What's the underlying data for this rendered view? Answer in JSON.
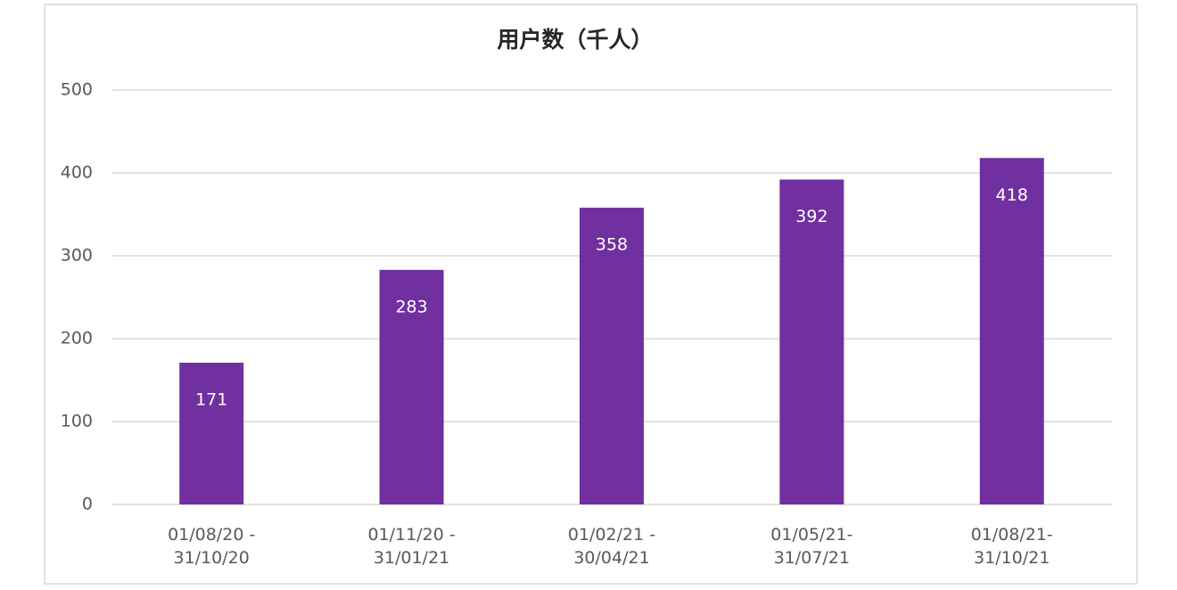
{
  "chart_data": {
    "type": "bar",
    "title": "用户数（千人）",
    "categories": [
      "01/08/20 -\n31/10/20",
      "01/11/20 -\n31/01/21",
      "01/02/21 -\n30/04/21",
      "01/05/21-\n31/07/21",
      "01/08/21-\n31/10/21"
    ],
    "values": [
      171,
      283,
      358,
      392,
      418
    ],
    "color": "#7030a0",
    "ylim": [
      0,
      500
    ],
    "yticks": [
      0,
      100,
      200,
      300,
      400,
      500
    ],
    "grid": true
  }
}
